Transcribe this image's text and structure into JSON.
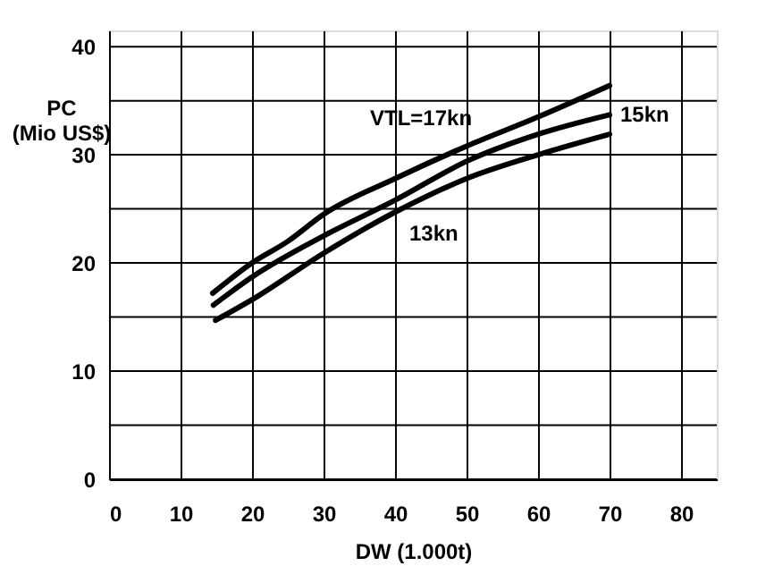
{
  "chart_data": {
    "type": "line",
    "xlabel": "DW (1.000t)",
    "ylabel": "PC\n(Mio US$)",
    "xlim": [
      0,
      85
    ],
    "ylim": [
      0,
      41.5
    ],
    "xticks": [
      0,
      10,
      20,
      30,
      40,
      50,
      60,
      70,
      80
    ],
    "yticks": [
      0,
      {
        "value": 5,
        "label": null
      },
      10,
      {
        "value": 15,
        "label": null
      },
      20,
      {
        "value": 25,
        "label": null
      },
      30,
      {
        "value": 35,
        "label": null
      },
      40
    ],
    "grid": true,
    "legend": false,
    "line_style": "solid",
    "marker": "none",
    "series": [
      {
        "name": "VTL=17kn",
        "color": "#000000",
        "x": [
          14.5,
          20,
          25,
          30,
          40,
          50,
          60,
          70
        ],
        "values": [
          17.2,
          20.0,
          22.0,
          24.5,
          27.8,
          30.8,
          33.5,
          36.4
        ]
      },
      {
        "name": "15kn",
        "color": "#000000",
        "x": [
          14.6,
          20,
          30,
          40,
          50,
          60,
          70
        ],
        "values": [
          16.1,
          18.7,
          22.5,
          25.8,
          29.4,
          31.9,
          33.7
        ]
      },
      {
        "name": "13kn",
        "color": "#000000",
        "x": [
          14.9,
          20,
          30,
          40,
          50,
          60,
          70
        ],
        "values": [
          14.7,
          16.6,
          20.9,
          24.7,
          27.8,
          30.0,
          31.9
        ]
      }
    ]
  }
}
